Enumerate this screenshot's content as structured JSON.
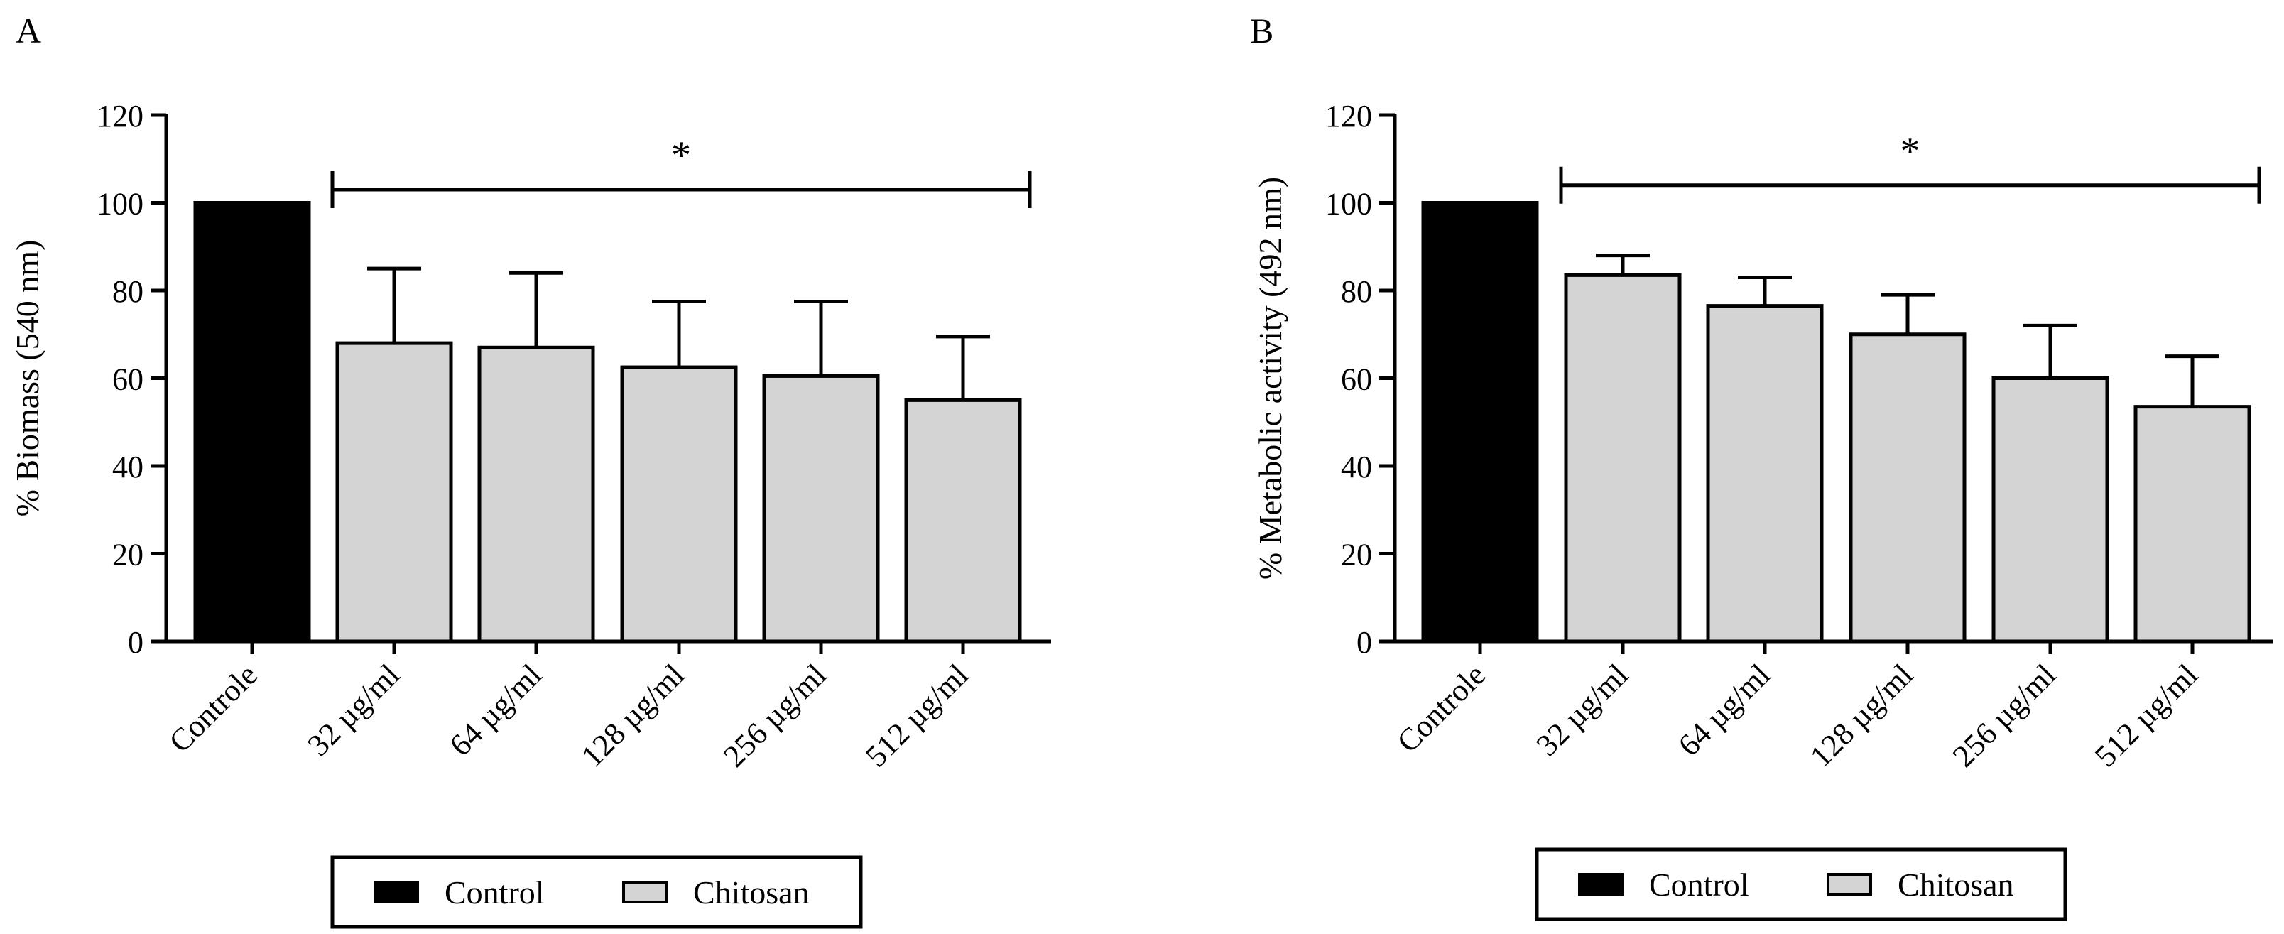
{
  "figure": {
    "legend_items": [
      {
        "label": "Control",
        "color": "#000000"
      },
      {
        "label": "Chitosan",
        "color": "#d4d4d4"
      }
    ]
  },
  "chart_data": [
    {
      "panel_label": "A",
      "type": "bar",
      "title": "",
      "xlabel": "",
      "ylabel": "% Biomass (540 nm)",
      "ylim": [
        0,
        120
      ],
      "yticks": [
        0,
        20,
        40,
        60,
        80,
        100,
        120
      ],
      "categories": [
        "Controle",
        "32 µg/ml",
        "64 µg/ml",
        "128 µg/ml",
        "256 µg/ml",
        "512 µg/ml"
      ],
      "values": [
        100,
        68,
        67,
        62.5,
        60.5,
        55
      ],
      "errors": [
        0,
        17,
        17,
        15,
        17,
        14.5
      ],
      "groups": [
        "Control",
        "Chitosan",
        "Chitosan",
        "Chitosan",
        "Chitosan",
        "Chitosan"
      ],
      "colors": {
        "Control": "#000000",
        "Chitosan": "#d4d4d4"
      },
      "significance": {
        "symbol": "*",
        "from": "32 µg/ml",
        "to": "512 µg/ml",
        "y": 103
      }
    },
    {
      "panel_label": "B",
      "type": "bar",
      "title": "",
      "xlabel": "",
      "ylabel": "% Metabolic activity (492 nm)",
      "ylim": [
        0,
        120
      ],
      "yticks": [
        0,
        20,
        40,
        60,
        80,
        100,
        120
      ],
      "categories": [
        "Controle",
        "32 µg/ml",
        "64 µg/ml",
        "128 µg/ml",
        "256 µg/ml",
        "512 µg/ml"
      ],
      "values": [
        100,
        83.5,
        76.5,
        70,
        60,
        53.5
      ],
      "errors": [
        0,
        4.5,
        6.5,
        9,
        12,
        11.5
      ],
      "groups": [
        "Control",
        "Chitosan",
        "Chitosan",
        "Chitosan",
        "Chitosan",
        "Chitosan"
      ],
      "colors": {
        "Control": "#000000",
        "Chitosan": "#d4d4d4"
      },
      "significance": {
        "symbol": "*",
        "from": "32 µg/ml",
        "to": "512 µg/ml",
        "y": 104
      }
    }
  ]
}
